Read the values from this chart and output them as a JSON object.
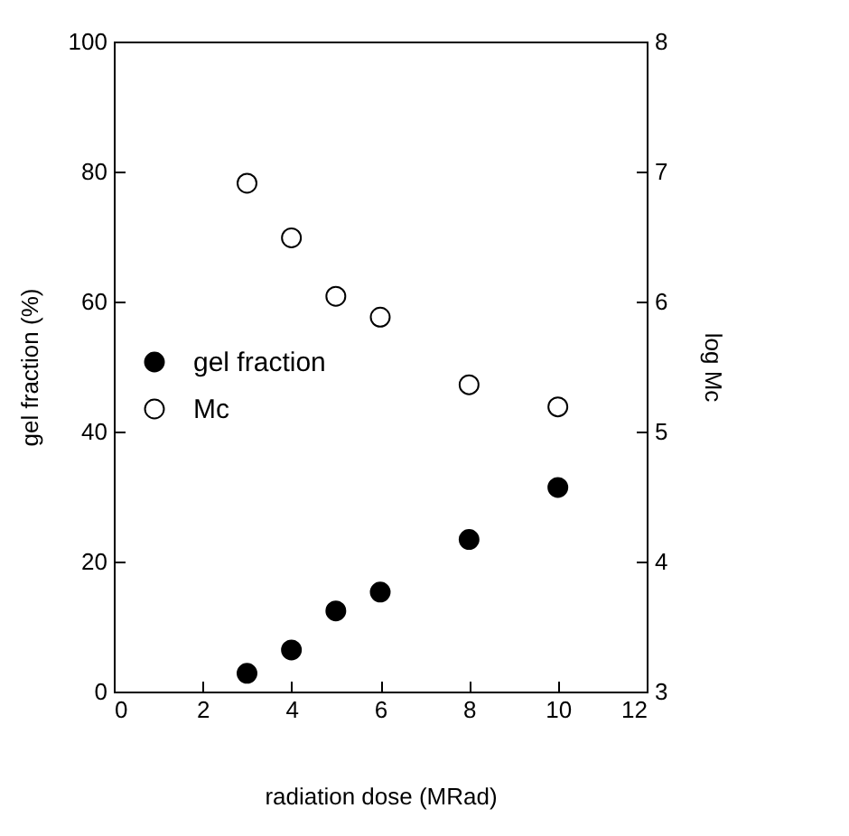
{
  "chart_data": {
    "type": "scatter",
    "xlabel": "radiation dose (MRad)",
    "ylabel": "gel fraction (%)",
    "y2label": "log Mc",
    "x": [
      3,
      4,
      5,
      6,
      8,
      10
    ],
    "xlim": [
      0,
      12
    ],
    "xticks": [
      0,
      2,
      4,
      6,
      8,
      10,
      12
    ],
    "ylim": [
      0,
      100
    ],
    "yticks": [
      0,
      20,
      40,
      60,
      80,
      100
    ],
    "y2lim": [
      3,
      8
    ],
    "y2ticks": [
      3,
      4,
      5,
      6,
      7,
      8
    ],
    "series": [
      {
        "name": "gel fraction",
        "color": "#000000",
        "values": [
          2.8,
          6.4,
          12.4,
          15.3,
          23.4,
          31.4
        ]
      },
      {
        "name": "Mc",
        "color": "#ffffff",
        "axis": "y2",
        "values": [
          6.91,
          6.49,
          6.04,
          5.88,
          5.36,
          5.19
        ]
      }
    ],
    "marker": "circle",
    "legend": "left",
    "grid": false
  }
}
